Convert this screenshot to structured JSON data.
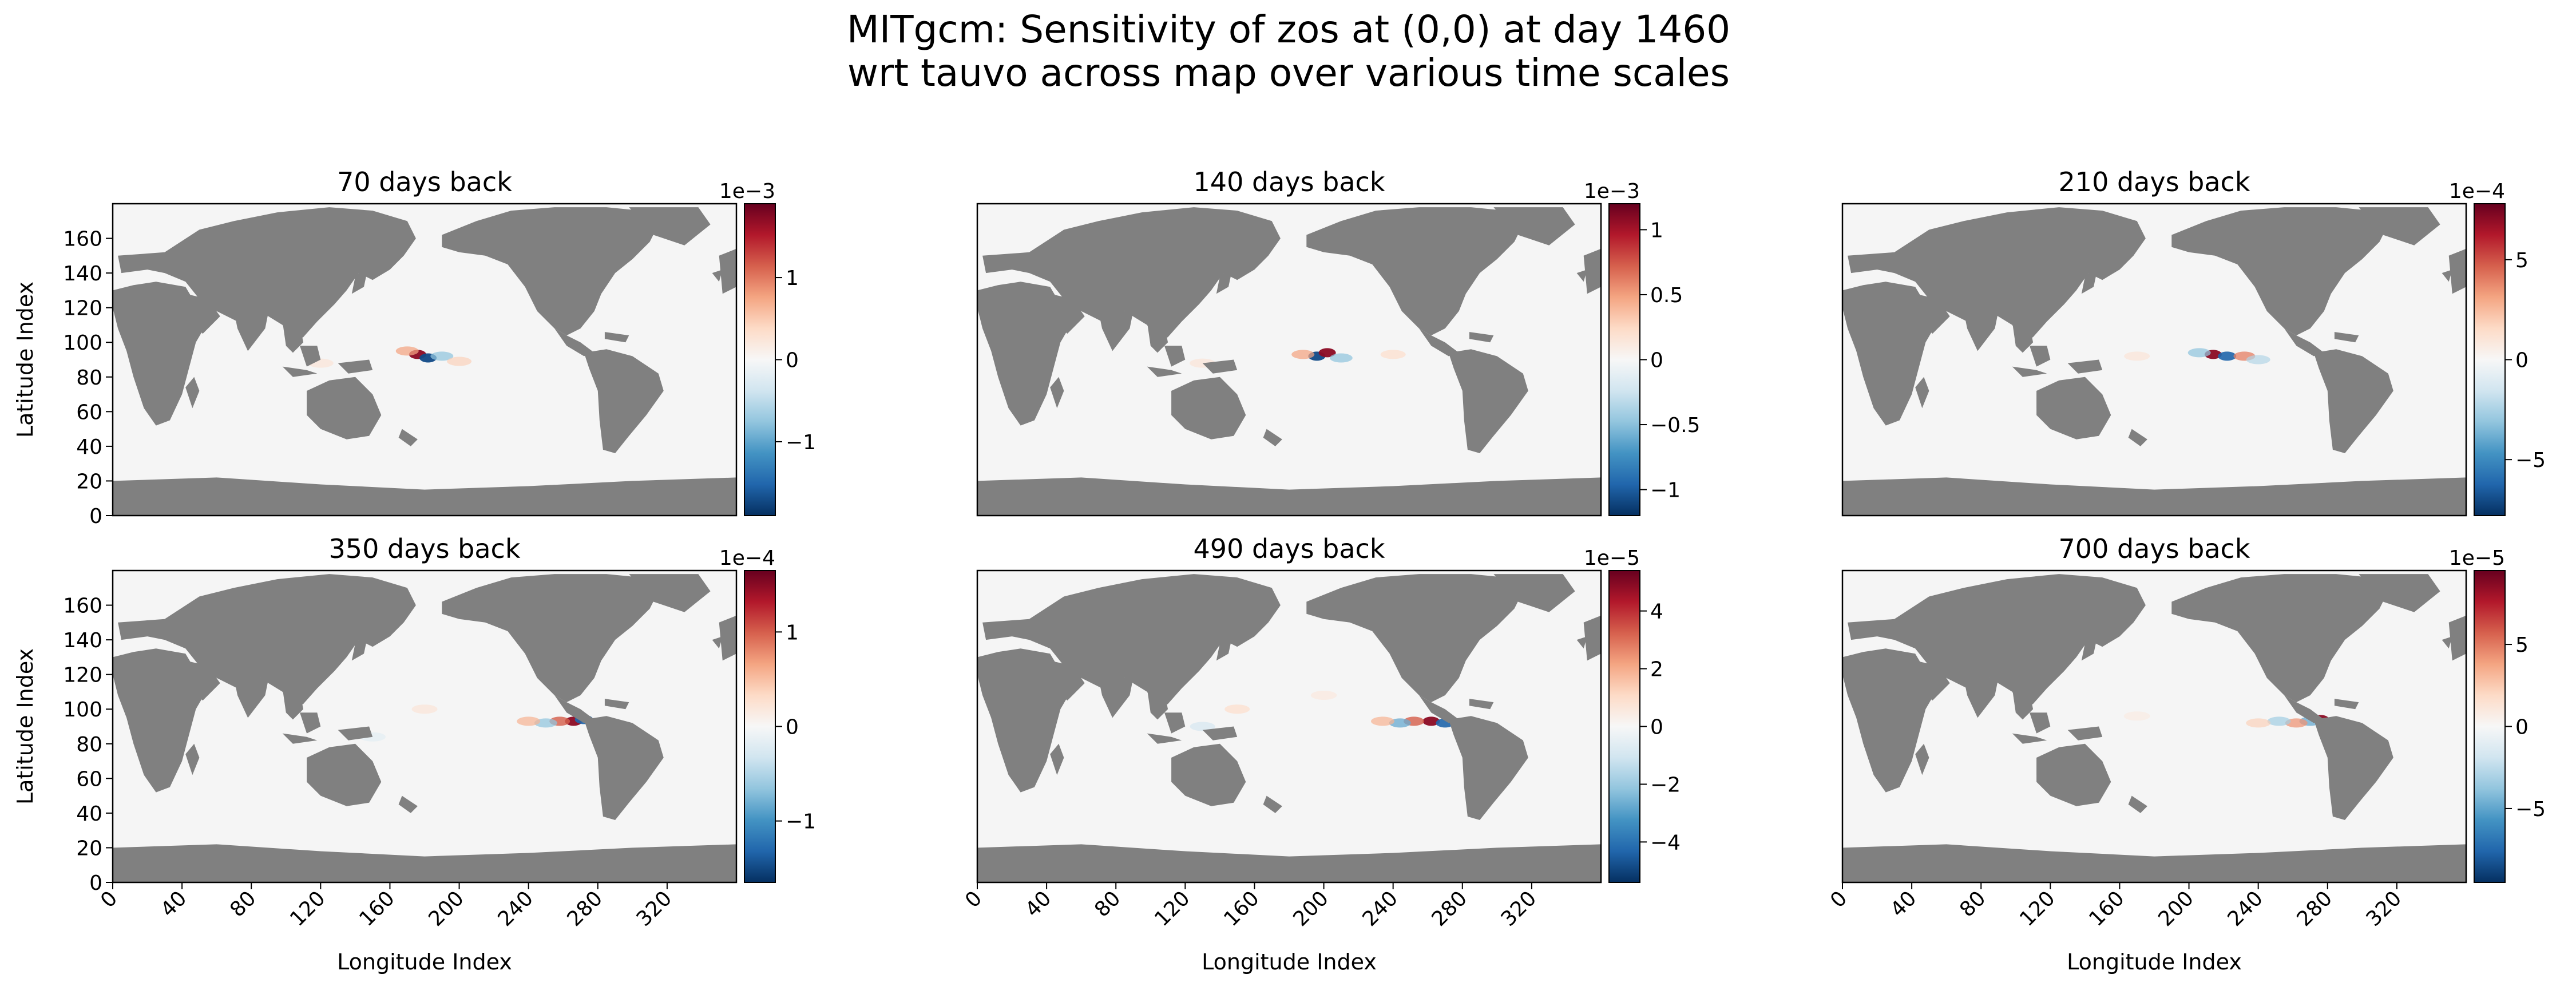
{
  "figure": {
    "title_line1": "MITgcm: Sensitivity of zos at (0,0) at day 1460",
    "title_line2": "wrt tauvo across map over various time scales"
  },
  "colors": {
    "land": "#808080",
    "ocean": "#f5f5f5",
    "cmap_rdbu": [
      "#053061",
      "#2166ac",
      "#4393c3",
      "#92c5de",
      "#d1e5f0",
      "#f7f7f7",
      "#fddbc7",
      "#f4a582",
      "#d6604d",
      "#b2182b",
      "#67001f"
    ]
  },
  "chart_data": [
    {
      "type": "heatmap",
      "title": "70 days back",
      "xlabel": "",
      "ylabel": "Latitude Index",
      "xlim": [
        0,
        360
      ],
      "ylim": [
        0,
        180
      ],
      "xticks": [],
      "yticks": [
        0,
        20,
        40,
        60,
        80,
        100,
        120,
        140,
        160
      ],
      "colorbar": {
        "exponent_label": "1e−3",
        "range": [
          -1.9,
          1.9
        ],
        "ticks": [
          -1,
          0,
          1
        ]
      },
      "features": [
        {
          "x": 176,
          "y": 93,
          "amp": 0.9
        },
        {
          "x": 182,
          "y": 91,
          "amp": -0.9
        },
        {
          "x": 170,
          "y": 95,
          "amp": 0.4
        },
        {
          "x": 190,
          "y": 92,
          "amp": -0.4
        },
        {
          "x": 120,
          "y": 88,
          "amp": 0.15
        },
        {
          "x": 200,
          "y": 89,
          "amp": 0.25
        }
      ]
    },
    {
      "type": "heatmap",
      "title": "140 days back",
      "xlabel": "",
      "ylabel": "",
      "xlim": [
        0,
        360
      ],
      "ylim": [
        0,
        180
      ],
      "xticks": [],
      "yticks": [],
      "colorbar": {
        "exponent_label": "1e−3",
        "range": [
          -1.2,
          1.2
        ],
        "ticks": [
          -1.0,
          -0.5,
          0.0,
          0.5,
          1.0
        ]
      },
      "features": [
        {
          "x": 196,
          "y": 92,
          "amp": -0.9
        },
        {
          "x": 202,
          "y": 94,
          "amp": 0.9
        },
        {
          "x": 188,
          "y": 93,
          "amp": 0.4
        },
        {
          "x": 210,
          "y": 91,
          "amp": -0.4
        },
        {
          "x": 130,
          "y": 88,
          "amp": 0.15
        },
        {
          "x": 240,
          "y": 93,
          "amp": 0.2
        }
      ]
    },
    {
      "type": "heatmap",
      "title": "210 days back",
      "xlabel": "",
      "ylabel": "",
      "xlim": [
        0,
        360
      ],
      "ylim": [
        0,
        180
      ],
      "xticks": [],
      "yticks": [],
      "colorbar": {
        "exponent_label": "1e−4",
        "range": [
          -7.8,
          7.8
        ],
        "ticks": [
          -5,
          0,
          5
        ]
      },
      "features": [
        {
          "x": 214,
          "y": 93,
          "amp": 0.9
        },
        {
          "x": 222,
          "y": 92,
          "amp": -0.8
        },
        {
          "x": 206,
          "y": 94,
          "amp": -0.4
        },
        {
          "x": 232,
          "y": 92,
          "amp": 0.5
        },
        {
          "x": 240,
          "y": 90,
          "amp": -0.3
        },
        {
          "x": 170,
          "y": 92,
          "amp": 0.15
        }
      ]
    },
    {
      "type": "heatmap",
      "title": "350 days back",
      "xlabel": "",
      "ylabel": "Latitude Index",
      "xlim": [
        0,
        360
      ],
      "ylim": [
        0,
        180
      ],
      "xticks": [],
      "yticks": [
        0,
        20,
        40,
        60,
        80,
        100,
        120,
        140,
        160
      ],
      "colorbar": {
        "exponent_label": "1e−4",
        "range": [
          -1.65,
          1.65
        ],
        "ticks": [
          -1,
          0,
          1
        ]
      },
      "features": [
        {
          "x": 266,
          "y": 93,
          "amp": 0.9
        },
        {
          "x": 272,
          "y": 94,
          "amp": -0.8
        },
        {
          "x": 258,
          "y": 93,
          "amp": 0.6
        },
        {
          "x": 250,
          "y": 92,
          "amp": -0.4
        },
        {
          "x": 240,
          "y": 93,
          "amp": 0.35
        },
        {
          "x": 180,
          "y": 100,
          "amp": 0.15
        },
        {
          "x": 150,
          "y": 84,
          "amp": -0.12
        }
      ]
    },
    {
      "type": "heatmap",
      "title": "490 days back",
      "xlabel": "",
      "ylabel": "",
      "xlim": [
        0,
        360
      ],
      "ylim": [
        0,
        180
      ],
      "xticks": [],
      "yticks": [],
      "colorbar": {
        "exponent_label": "1e−5",
        "range": [
          -5.4,
          5.4
        ],
        "ticks": [
          -4,
          -2,
          0,
          2,
          4
        ]
      },
      "features": [
        {
          "x": 262,
          "y": 93,
          "amp": 0.9
        },
        {
          "x": 270,
          "y": 92,
          "amp": -0.8
        },
        {
          "x": 252,
          "y": 93,
          "amp": 0.6
        },
        {
          "x": 244,
          "y": 92,
          "amp": -0.5
        },
        {
          "x": 234,
          "y": 93,
          "amp": 0.35
        },
        {
          "x": 150,
          "y": 100,
          "amp": 0.2
        },
        {
          "x": 130,
          "y": 90,
          "amp": -0.2
        },
        {
          "x": 200,
          "y": 108,
          "amp": 0.12
        }
      ]
    },
    {
      "type": "heatmap",
      "title": "700 days back",
      "xlabel": "",
      "ylabel": "",
      "xlim": [
        0,
        360
      ],
      "ylim": [
        0,
        180
      ],
      "xticks": [],
      "yticks": [],
      "colorbar": {
        "exponent_label": "1e−5",
        "range": [
          -9.5,
          9.5
        ],
        "ticks": [
          -5,
          0,
          5
        ]
      },
      "features": [
        {
          "x": 276,
          "y": 94,
          "amp": 0.9
        },
        {
          "x": 270,
          "y": 93,
          "amp": -0.5
        },
        {
          "x": 262,
          "y": 92,
          "amp": 0.45
        },
        {
          "x": 252,
          "y": 93,
          "amp": -0.35
        },
        {
          "x": 240,
          "y": 92,
          "amp": 0.25
        },
        {
          "x": 170,
          "y": 96,
          "amp": 0.1
        }
      ]
    }
  ],
  "shared_x_axis": {
    "xlabel": "Longitude Index",
    "ticks": [
      0,
      40,
      80,
      120,
      160,
      200,
      240,
      280,
      320
    ]
  }
}
